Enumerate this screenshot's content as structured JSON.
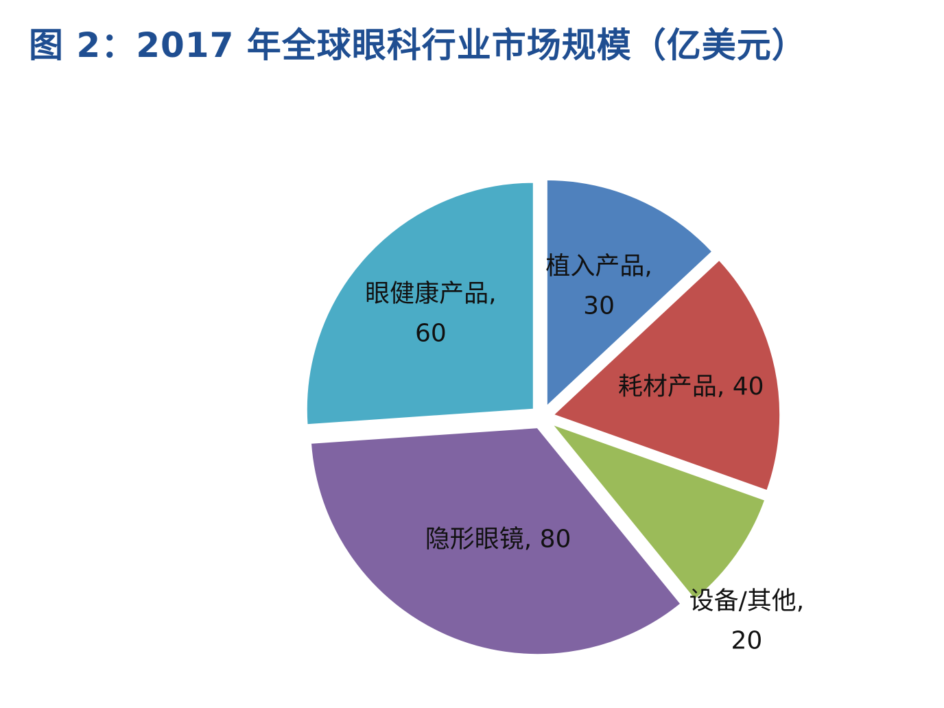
{
  "page": {
    "title": "图 2：2017 年全球眼科行业市场规模（亿美元）",
    "title_color": "#1f4e91"
  },
  "chart_data": {
    "type": "pie",
    "title": "图 2：2017 年全球眼科行业市场规模（亿美元）",
    "legend": "none",
    "data_labels": "category, value",
    "slices": [
      {
        "label": "植入产品",
        "value": 30,
        "color": "#4f81bd"
      },
      {
        "label": "耗材产品",
        "value": 40,
        "color": "#c0504d"
      },
      {
        "label": "设备/其他",
        "value": 20,
        "color": "#9bbb59"
      },
      {
        "label": "隐形眼镜",
        "value": 80,
        "color": "#8064a2"
      },
      {
        "label": "眼健康产品",
        "value": 60,
        "color": "#4bacc6"
      }
    ]
  }
}
